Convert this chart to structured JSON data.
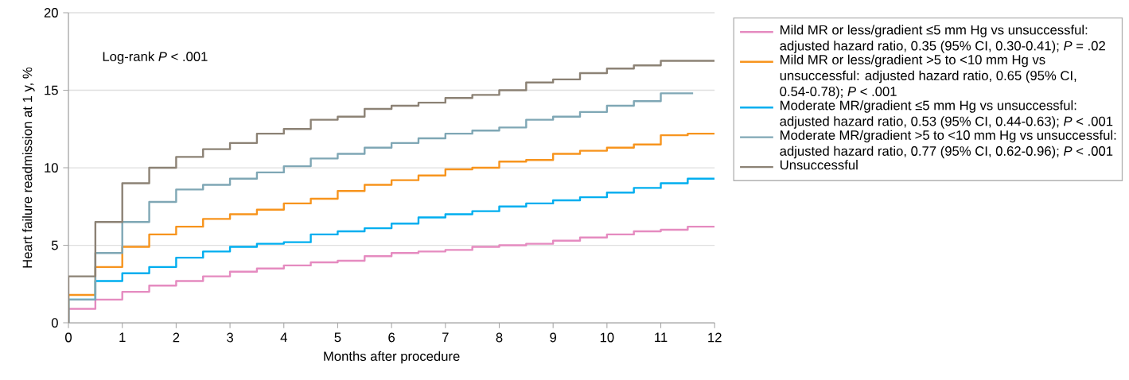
{
  "chart_data": {
    "type": "step",
    "xlabel": "Months after procedure",
    "ylabel": "Heart failure readmission at 1 y, %",
    "annotations": [
      "Log-rank *P* < .001"
    ],
    "x": [
      0,
      0.5,
      1,
      1.5,
      2,
      2.5,
      3,
      3.5,
      4,
      4.5,
      5,
      5.5,
      6,
      6.5,
      7,
      7.5,
      8,
      8.5,
      9,
      9.5,
      10,
      10.5,
      11,
      11.5,
      12
    ],
    "series": [
      {
        "name": "Mild MR or less/gradient ≤5 mm Hg vs unsuccessful: adjusted hazard ratio, 0.35 (95% CI, 0.30-0.41); *P* = .02",
        "color": "#e58bc0",
        "values": [
          0,
          0.9,
          1.5,
          2.0,
          2.4,
          2.7,
          3.0,
          3.3,
          3.5,
          3.7,
          3.9,
          4.0,
          4.3,
          4.5,
          4.6,
          4.7,
          4.9,
          5.0,
          5.1,
          5.3,
          5.5,
          5.7,
          5.9,
          6.0,
          6.2
        ]
      },
      {
        "name": "Mild MR or less/gradient >5 to <10 mm Hg vs unsuccessful: adjusted hazard ratio, 0.65 (95% CI, 0.54-0.78); *P* < .001",
        "color": "#f7941d",
        "values": [
          0,
          1.8,
          3.6,
          4.9,
          5.7,
          6.2,
          6.7,
          7.0,
          7.3,
          7.7,
          8.0,
          8.5,
          8.9,
          9.2,
          9.5,
          9.9,
          10.0,
          10.4,
          10.5,
          10.9,
          11.1,
          11.3,
          11.5,
          12.1,
          12.2
        ]
      },
      {
        "name": "Moderate MR/gradient ≤5 mm Hg vs unsuccessful: adjusted hazard ratio, 0.53 (95% CI, 0.44-0.63); *P* < .001",
        "color": "#00aeef",
        "values": [
          0,
          1.5,
          2.7,
          3.2,
          3.6,
          4.2,
          4.6,
          4.9,
          5.1,
          5.2,
          5.7,
          5.9,
          6.1,
          6.4,
          6.8,
          7.0,
          7.2,
          7.5,
          7.7,
          7.9,
          8.1,
          8.4,
          8.7,
          9.0,
          9.3
        ]
      },
      {
        "name": "Moderate MR/gradient >5 to <10 mm Hg vs unsuccessful: adjusted hazard ratio, 0.77 (95% CI, 0.62-0.96); *P* < .001",
        "color": "#7fa7b5",
        "x": [
          0,
          0.5,
          1,
          1.5,
          2,
          2.5,
          3,
          3.5,
          4,
          4.5,
          5,
          5.5,
          6,
          6.5,
          7,
          7.5,
          8,
          8.5,
          9,
          9.5,
          10,
          10.5,
          11,
          11.6
        ],
        "values": [
          0,
          1.5,
          4.5,
          6.5,
          7.8,
          8.6,
          8.9,
          9.3,
          9.7,
          10.1,
          10.6,
          10.9,
          11.3,
          11.6,
          11.9,
          12.2,
          12.4,
          12.6,
          13.1,
          13.3,
          13.6,
          14.0,
          14.3,
          14.8
        ]
      },
      {
        "name": "Unsuccessful",
        "color": "#8c8275",
        "values": [
          0,
          3.0,
          6.5,
          9.0,
          10.0,
          10.7,
          11.2,
          11.6,
          12.2,
          12.5,
          13.1,
          13.3,
          13.8,
          14.0,
          14.2,
          14.5,
          14.7,
          15.0,
          15.5,
          15.7,
          16.1,
          16.4,
          16.6,
          16.9,
          16.9
        ]
      }
    ],
    "xlim": [
      0,
      12
    ],
    "ylim": [
      0,
      20
    ],
    "xticks": [
      0,
      1,
      2,
      3,
      4,
      5,
      6,
      7,
      8,
      9,
      10,
      11,
      12
    ],
    "yticks": [
      0,
      5,
      10,
      15,
      20
    ],
    "grid": "y",
    "legend": "right",
    "line_style": "solid"
  }
}
